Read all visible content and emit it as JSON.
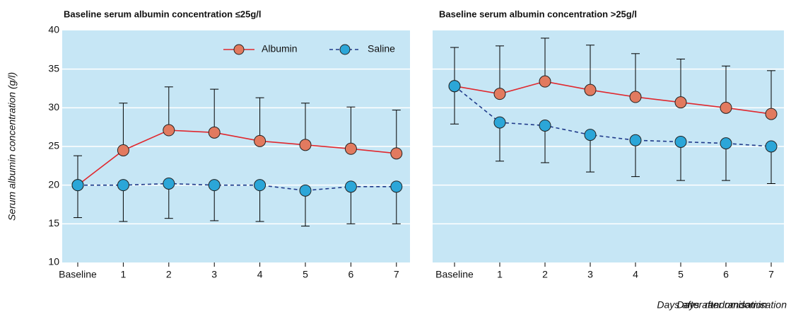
{
  "chart_data": [
    {
      "type": "line",
      "title": "Baseline serum albumin concentration ≤25g/l",
      "y_label": "Serum albumin concentration (g/l)",
      "x_label": "Days after randomisation",
      "categories": [
        "Baseline",
        "1",
        "2",
        "3",
        "4",
        "5",
        "6",
        "7"
      ],
      "ylim": [
        10,
        40
      ],
      "yticks": [
        10,
        15,
        20,
        25,
        30,
        35,
        40
      ],
      "grid": true,
      "background": "#c6e6f5",
      "legend": "top right",
      "show_ytick_labels": true,
      "series": [
        {
          "name": "Albumin",
          "color": "#e0282e",
          "marker_color": "#e27a5f",
          "line_style": "solid",
          "error_side": "upper",
          "values": [
            20,
            24.5,
            27.1,
            26.8,
            25.7,
            25.2,
            24.7,
            24.1
          ],
          "errors": [
            3.8,
            6.1,
            5.6,
            5.6,
            5.6,
            5.4,
            5.4,
            5.6
          ]
        },
        {
          "name": "Saline",
          "color": "#1f3a8a",
          "marker_color": "#2ba6d8",
          "line_style": "dashed",
          "error_side": "lower",
          "values": [
            20,
            20,
            20.2,
            20,
            20,
            19.3,
            19.8,
            19.8
          ],
          "errors": [
            4.2,
            4.7,
            4.5,
            4.6,
            4.7,
            4.6,
            4.8,
            4.8
          ]
        }
      ]
    },
    {
      "type": "line",
      "title": "Baseline serum albumin concentration >25g/l",
      "x_label": "Days after randomisation",
      "categories": [
        "Baseline",
        "1",
        "2",
        "3",
        "4",
        "5",
        "6",
        "7"
      ],
      "ylim": [
        10,
        40
      ],
      "yticks": [
        10,
        15,
        20,
        25,
        30,
        35,
        40
      ],
      "grid": true,
      "background": "#c6e6f5",
      "show_ytick_labels": false,
      "series": [
        {
          "color": "#e0282e",
          "marker_color": "#e27a5f",
          "line_style": "solid",
          "error_side": "upper",
          "values": [
            32.8,
            31.8,
            33.4,
            32.3,
            31.4,
            30.7,
            30.0,
            29.2
          ],
          "errors": [
            5.0,
            6.2,
            5.6,
            5.8,
            5.6,
            5.6,
            5.4,
            5.6
          ]
        },
        {
          "color": "#1f3a8a",
          "marker_color": "#2ba6d8",
          "line_style": "dashed",
          "error_side": "lower",
          "values": [
            32.8,
            28.1,
            27.7,
            26.5,
            25.8,
            25.6,
            25.4,
            25.0
          ],
          "errors": [
            4.9,
            5.0,
            4.8,
            4.8,
            4.7,
            5.0,
            4.8,
            4.8
          ]
        }
      ]
    }
  ]
}
